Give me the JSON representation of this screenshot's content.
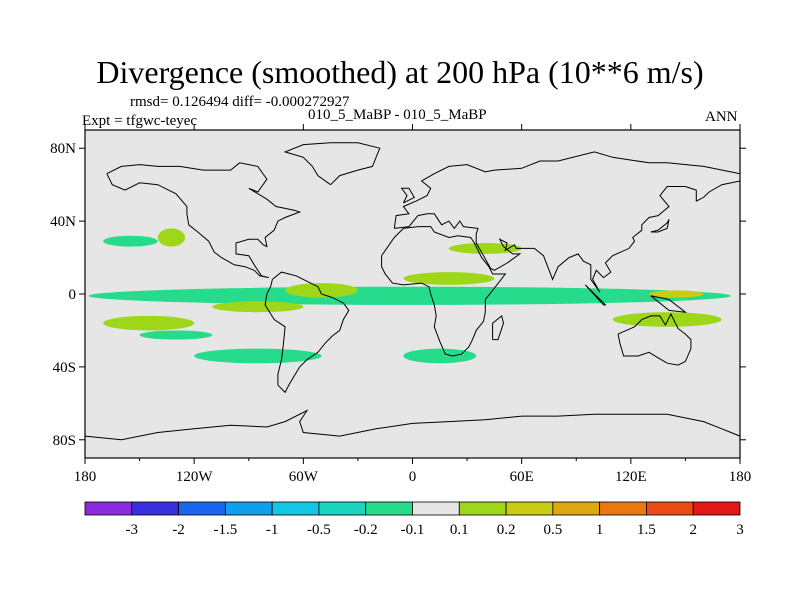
{
  "chart_data": {
    "type": "heatmap",
    "title": "Divergence (smoothed) at 200 hPa (10**6 m/s)",
    "stats_line": "rmsd= 0.126494 diff= -0.000272927",
    "case_line": "010_5_MaBP - 010_5_MaBP",
    "experiment": "Expt = tfgwc-teyec",
    "season": "ANN",
    "projection": "cylindrical equidistant",
    "xlim": [
      -180,
      180
    ],
    "ylim": [
      -90,
      90
    ],
    "x_ticks": [
      {
        "value": -180,
        "label": "180"
      },
      {
        "value": -120,
        "label": "120W"
      },
      {
        "value": -60,
        "label": "60W"
      },
      {
        "value": 0,
        "label": "0"
      },
      {
        "value": 60,
        "label": "60E"
      },
      {
        "value": 120,
        "label": "120E"
      },
      {
        "value": 180,
        "label": "180"
      }
    ],
    "y_ticks": [
      {
        "value": 80,
        "label": "80N"
      },
      {
        "value": 40,
        "label": "40N"
      },
      {
        "value": 0,
        "label": "0"
      },
      {
        "value": -40,
        "label": "40S"
      },
      {
        "value": -80,
        "label": "80S"
      }
    ],
    "colorbar": {
      "levels": [
        "-3",
        "-2",
        "-1.5",
        "-1",
        "-0.5",
        "-0.2",
        "-0.1",
        "0.1",
        "0.2",
        "0.5",
        "1",
        "1.5",
        "2",
        "3"
      ],
      "colors": [
        "#8a2be2",
        "#3a2fe0",
        "#1a66ee",
        "#0f9fee",
        "#12c6e6",
        "#1ad6bf",
        "#26dc8c",
        "#e6e6e6",
        "#9ed61a",
        "#c8cc14",
        "#dcaa10",
        "#ec7810",
        "#ec4a14",
        "#e21818"
      ]
    },
    "field_regions": [
      {
        "level": "0.1",
        "lon": [
          -175,
          178
        ],
        "lat": [
          13,
          22
        ]
      },
      {
        "level": "-0.1",
        "lon": [
          -178,
          175
        ],
        "lat": [
          -6,
          4
        ]
      },
      {
        "level": "0.2",
        "lon": [
          -170,
          -120
        ],
        "lat": [
          -20,
          -12
        ]
      },
      {
        "level": "0.2",
        "lon": [
          -70,
          -30
        ],
        "lat": [
          -2,
          6
        ]
      },
      {
        "level": "0.2",
        "lon": [
          -5,
          45
        ],
        "lat": [
          5,
          12
        ]
      },
      {
        "level": "0.2",
        "lon": [
          110,
          170
        ],
        "lat": [
          -18,
          -10
        ]
      },
      {
        "level": "0.5",
        "lon": [
          130,
          160
        ],
        "lat": [
          -2,
          2
        ]
      },
      {
        "level": "-0.1",
        "lon": [
          -150,
          -110
        ],
        "lat": [
          -25,
          -20
        ]
      },
      {
        "level": "-0.1",
        "lon": [
          -120,
          -50
        ],
        "lat": [
          -38,
          -30
        ]
      },
      {
        "level": "-0.1",
        "lon": [
          -5,
          35
        ],
        "lat": [
          -38,
          -30
        ]
      },
      {
        "level": "0.2",
        "lon": [
          -110,
          -60
        ],
        "lat": [
          -10,
          -4
        ]
      },
      {
        "level": "0.2",
        "lon": [
          20,
          60
        ],
        "lat": [
          22,
          28
        ]
      },
      {
        "level": "-0.1",
        "lon": [
          -170,
          -140
        ],
        "lat": [
          26,
          32
        ]
      },
      {
        "level": "0.2",
        "lon": [
          -140,
          -125
        ],
        "lat": [
          26,
          36
        ]
      }
    ]
  }
}
